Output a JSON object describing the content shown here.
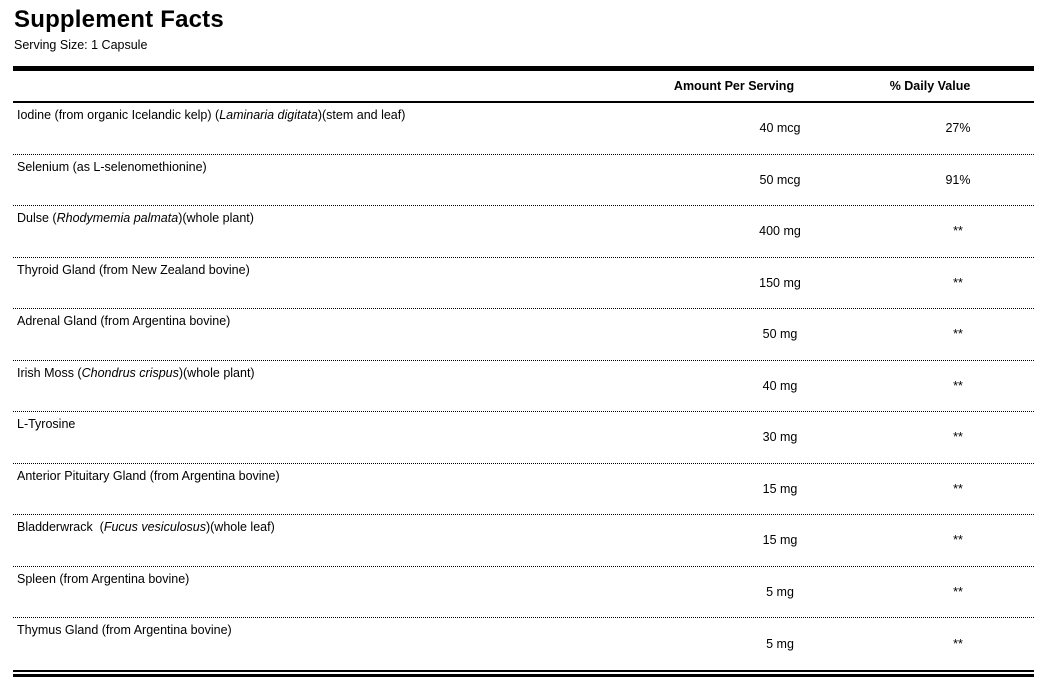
{
  "title": "Supplement Facts",
  "serving_size": "Serving Size: 1 Capsule",
  "colors": {
    "text": "#000000",
    "background": "#ffffff",
    "rules": "#000000"
  },
  "table": {
    "headers": {
      "amount": "Amount Per Serving",
      "daily_value": "% Daily Value"
    },
    "rows": [
      {
        "name_parts": [
          {
            "text": "Iodine (from organic Icelandic kelp) (",
            "italic": false
          },
          {
            "text": "Laminaria digitata",
            "italic": true
          },
          {
            "text": ")(stem and leaf)",
            "italic": false
          }
        ],
        "amount": "40 mcg",
        "daily_value": "27%"
      },
      {
        "name_parts": [
          {
            "text": "Selenium (as L-selenomethionine)",
            "italic": false
          }
        ],
        "amount": "50 mcg",
        "daily_value": "91%"
      },
      {
        "name_parts": [
          {
            "text": "Dulse (",
            "italic": false
          },
          {
            "text": "Rhodymemia palmata",
            "italic": true
          },
          {
            "text": ")(whole plant)",
            "italic": false
          }
        ],
        "amount": "400 mg",
        "daily_value": "**"
      },
      {
        "name_parts": [
          {
            "text": "Thyroid Gland (from New Zealand bovine)",
            "italic": false
          }
        ],
        "amount": "150 mg",
        "daily_value": "**"
      },
      {
        "name_parts": [
          {
            "text": "Adrenal Gland (from Argentina bovine)",
            "italic": false
          }
        ],
        "amount": "50 mg",
        "daily_value": "**"
      },
      {
        "name_parts": [
          {
            "text": "Irish Moss (",
            "italic": false
          },
          {
            "text": "Chondrus crispus",
            "italic": true
          },
          {
            "text": ")(whole plant)",
            "italic": false
          }
        ],
        "amount": "40 mg",
        "daily_value": "**"
      },
      {
        "name_parts": [
          {
            "text": "L-Tyrosine",
            "italic": false
          }
        ],
        "amount": "30 mg",
        "daily_value": "**"
      },
      {
        "name_parts": [
          {
            "text": "Anterior Pituitary Gland (from Argentina bovine)",
            "italic": false
          }
        ],
        "amount": "15 mg",
        "daily_value": "**"
      },
      {
        "name_parts": [
          {
            "text": "Bladderwrack  (",
            "italic": false
          },
          {
            "text": "Fucus vesiculosus",
            "italic": true
          },
          {
            "text": ")(whole leaf)",
            "italic": false
          }
        ],
        "amount": "15 mg",
        "daily_value": "**"
      },
      {
        "name_parts": [
          {
            "text": "Spleen (from Argentina bovine)",
            "italic": false
          }
        ],
        "amount": "5 mg",
        "daily_value": "**"
      },
      {
        "name_parts": [
          {
            "text": "Thymus Gland (from Argentina bovine)",
            "italic": false
          }
        ],
        "amount": "5 mg",
        "daily_value": "**"
      }
    ]
  }
}
